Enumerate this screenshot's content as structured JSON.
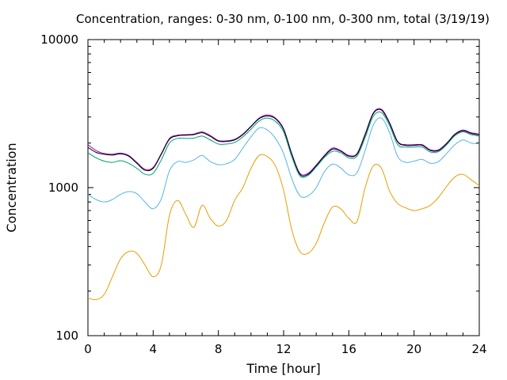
{
  "chart_data": {
    "type": "line",
    "title": "Concentration, ranges: 0-30 nm, 0-100 nm, 0-300 nm, total (3/19/19)",
    "xlabel": "Time [hour]",
    "ylabel": "Concentration",
    "xlim": [
      0,
      24
    ],
    "ylim": [
      100,
      10000
    ],
    "yscale": "log",
    "grid": false,
    "legend": "none",
    "x_ticks": [
      "0",
      "4",
      "8",
      "12",
      "16",
      "20",
      "24"
    ],
    "y_ticks": [
      "100",
      "1000",
      "10000"
    ],
    "x": [
      0,
      0.5,
      1,
      1.5,
      2,
      2.5,
      3,
      3.5,
      4,
      4.5,
      5,
      5.5,
      6,
      6.5,
      7,
      7.5,
      8,
      8.5,
      9,
      9.5,
      10,
      10.5,
      11,
      11.5,
      12,
      12.5,
      13,
      13.5,
      14,
      14.5,
      15,
      15.5,
      16,
      16.5,
      17,
      17.5,
      18,
      18.5,
      19,
      19.5,
      20,
      20.5,
      21,
      21.5,
      22,
      22.5,
      23,
      23.5,
      24
    ],
    "series": [
      {
        "color": "#9400d3",
        "values": [
          1950,
          1780,
          1700,
          1680,
          1710,
          1650,
          1480,
          1330,
          1370,
          1700,
          2150,
          2260,
          2280,
          2300,
          2380,
          2250,
          2080,
          2070,
          2120,
          2300,
          2600,
          2950,
          3100,
          2950,
          2500,
          1700,
          1250,
          1250,
          1420,
          1650,
          1850,
          1780,
          1650,
          1700,
          2300,
          3200,
          3380,
          2750,
          2050,
          1950,
          1950,
          1950,
          1800,
          1800,
          2000,
          2300,
          2450,
          2350,
          2300
        ]
      },
      {
        "color": "#000000",
        "values": [
          1870,
          1730,
          1680,
          1660,
          1690,
          1630,
          1460,
          1310,
          1350,
          1680,
          2120,
          2240,
          2260,
          2280,
          2350,
          2220,
          2060,
          2050,
          2100,
          2280,
          2580,
          2920,
          3050,
          2920,
          2470,
          1680,
          1230,
          1230,
          1400,
          1630,
          1820,
          1760,
          1630,
          1680,
          2270,
          3160,
          3340,
          2720,
          2030,
          1930,
          1930,
          1930,
          1780,
          1780,
          1980,
          2280,
          2420,
          2320,
          2270
        ]
      },
      {
        "color": "#009e73",
        "values": [
          1720,
          1590,
          1510,
          1480,
          1520,
          1460,
          1350,
          1230,
          1250,
          1540,
          2000,
          2150,
          2150,
          2160,
          2230,
          2100,
          1970,
          1970,
          2020,
          2200,
          2480,
          2820,
          2950,
          2800,
          2380,
          1620,
          1200,
          1210,
          1380,
          1600,
          1760,
          1720,
          1590,
          1630,
          2180,
          3030,
          3220,
          2620,
          1950,
          1880,
          1880,
          1880,
          1740,
          1750,
          1950,
          2240,
          2380,
          2280,
          2230
        ]
      },
      {
        "color": "#56b4e9",
        "values": [
          900,
          830,
          800,
          830,
          900,
          940,
          910,
          800,
          720,
          840,
          1300,
          1500,
          1480,
          1540,
          1650,
          1500,
          1430,
          1450,
          1550,
          1850,
          2200,
          2530,
          2450,
          2150,
          1700,
          1150,
          880,
          880,
          1000,
          1280,
          1440,
          1360,
          1220,
          1260,
          1780,
          2650,
          2950,
          2350,
          1620,
          1480,
          1510,
          1550,
          1460,
          1500,
          1700,
          1950,
          2100,
          2000,
          1980
        ]
      },
      {
        "color": "#e69f00",
        "values": [
          180,
          175,
          190,
          250,
          330,
          370,
          360,
          300,
          250,
          300,
          650,
          820,
          660,
          540,
          760,
          620,
          550,
          600,
          820,
          1000,
          1350,
          1650,
          1620,
          1400,
          960,
          520,
          370,
          360,
          420,
          580,
          740,
          720,
          620,
          590,
          1000,
          1400,
          1350,
          950,
          780,
          730,
          700,
          720,
          760,
          860,
          1020,
          1180,
          1230,
          1130,
          1030
        ]
      }
    ]
  }
}
